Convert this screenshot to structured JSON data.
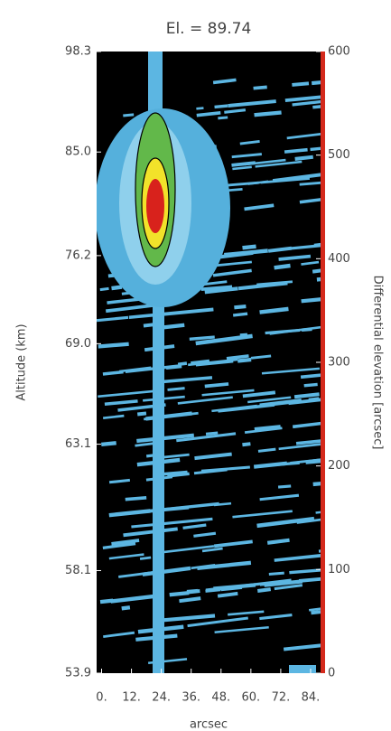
{
  "chart_data": {
    "type": "image",
    "title": "El. = 89.74",
    "xlabel": "arcsec",
    "ylabel": "Altitude (km)",
    "y2label": "Differential elevation [arcsec]",
    "xlim": [
      -2,
      88
    ],
    "xticks": [
      {
        "value": 0,
        "label": "0."
      },
      {
        "value": 12,
        "label": "12."
      },
      {
        "value": 24,
        "label": "24."
      },
      {
        "value": 36,
        "label": "36."
      },
      {
        "value": 48,
        "label": "48."
      },
      {
        "value": 60,
        "label": "60."
      },
      {
        "value": 72,
        "label": "72."
      },
      {
        "value": 84,
        "label": "84."
      }
    ],
    "y2lim": [
      0,
      600
    ],
    "y2ticks": [
      0,
      100,
      200,
      300,
      400,
      500,
      600
    ],
    "altitude_ticks": [
      {
        "elevation": 600,
        "label": "98.3"
      },
      {
        "elevation": 503,
        "label": "85.0"
      },
      {
        "elevation": 403,
        "label": "76.2"
      },
      {
        "elevation": 318,
        "label": "69.0"
      },
      {
        "elevation": 221,
        "label": "63.1"
      },
      {
        "elevation": 99,
        "label": "58.1"
      },
      {
        "elevation": 0,
        "label": "53.9"
      }
    ],
    "bar_color": "#d42a1c"
  }
}
